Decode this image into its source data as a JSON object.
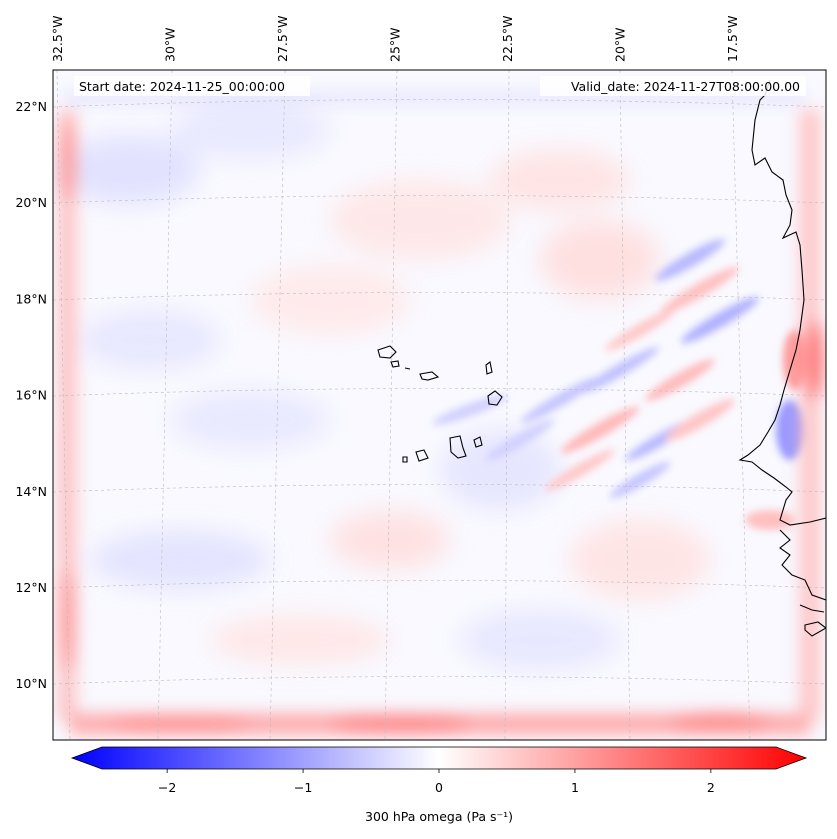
{
  "header": {
    "start_date": "Start date: 2024-11-25_00:00:00",
    "valid_date": "Valid_date: 2024-11-27T08:00:00.00"
  },
  "axes": {
    "lon_labels": [
      {
        "value": -32.5,
        "text": "32.5°W"
      },
      {
        "value": -30.0,
        "text": "30°W"
      },
      {
        "value": -27.5,
        "text": "27.5°W"
      },
      {
        "value": -25.0,
        "text": "25°W"
      },
      {
        "value": -22.5,
        "text": "22.5°W"
      },
      {
        "value": -20.0,
        "text": "20°W"
      },
      {
        "value": -17.5,
        "text": "17.5°W"
      }
    ],
    "lat_labels": [
      {
        "value": 22,
        "text": "22°N"
      },
      {
        "value": 20,
        "text": "20°N"
      },
      {
        "value": 18,
        "text": "18°N"
      },
      {
        "value": 16,
        "text": "16°N"
      },
      {
        "value": 14,
        "text": "14°N"
      },
      {
        "value": 12,
        "text": "12°N"
      },
      {
        "value": 10,
        "text": "10°N"
      }
    ]
  },
  "colorbar": {
    "label": "300 hPa omega (Pa s⁻¹)",
    "range": [
      -2.7,
      2.7
    ],
    "ticks": [
      {
        "value": -2,
        "text": "−2"
      },
      {
        "value": -1,
        "text": "−1"
      },
      {
        "value": 0,
        "text": "0"
      },
      {
        "value": 1,
        "text": "1"
      },
      {
        "value": 2,
        "text": "2"
      }
    ],
    "colors": {
      "min": "#0000ff",
      "mid": "#ffffff",
      "max": "#ff0000"
    }
  },
  "colors": {
    "coastline": "#000000",
    "gridline": "#bbbbbb",
    "background": "#ffffff"
  }
}
